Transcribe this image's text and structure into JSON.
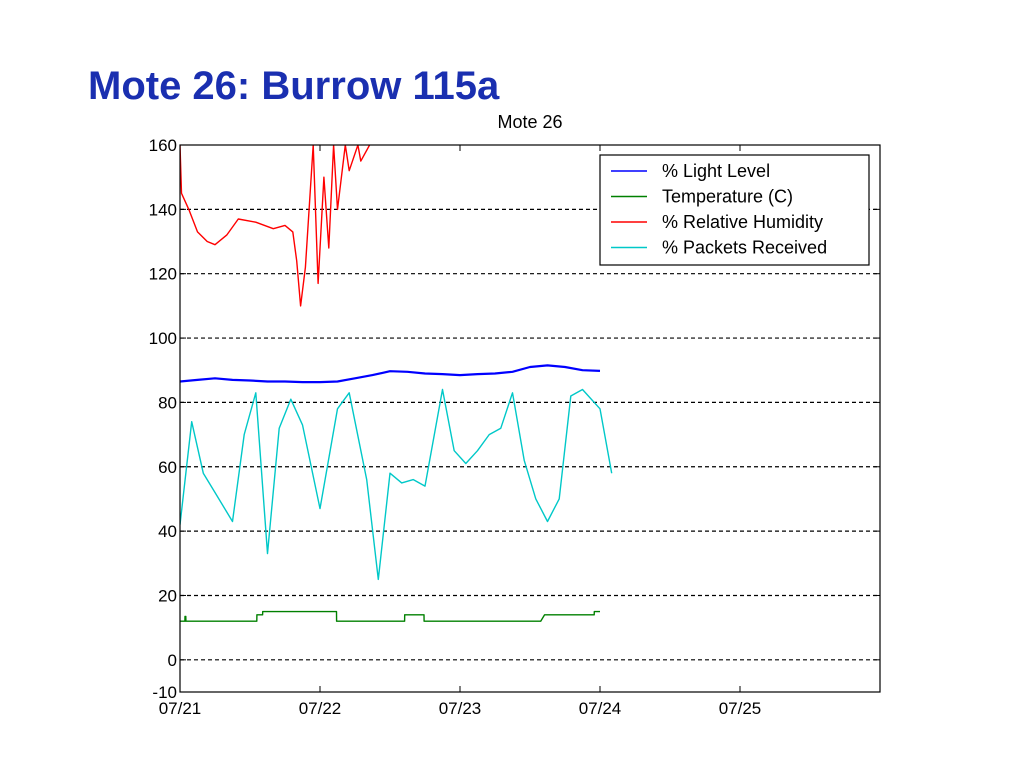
{
  "slide": {
    "title": "Mote 26: Burrow 115a"
  },
  "chart_data": {
    "type": "line",
    "title": "Mote 26",
    "xlabel": "",
    "ylabel": "",
    "x_ticks": [
      "07/21",
      "07/22",
      "07/23",
      "07/24",
      "07/25"
    ],
    "xlim": [
      "07/21 00:00",
      "07/26 00:00"
    ],
    "ylim": [
      -10,
      160
    ],
    "y_ticks": [
      -10,
      0,
      20,
      40,
      60,
      80,
      100,
      120,
      140,
      160
    ],
    "grid": "horizontal dashed",
    "legend_position": "top-right",
    "series": [
      {
        "name": "% Light Level",
        "color": "#0000ff",
        "points": [
          [
            "07/21 00:00",
            86.5
          ],
          [
            "07/21 03:00",
            87
          ],
          [
            "07/21 06:00",
            87.5
          ],
          [
            "07/21 09:00",
            87
          ],
          [
            "07/21 12:00",
            86.8
          ],
          [
            "07/21 15:00",
            86.5
          ],
          [
            "07/21 18:00",
            86.5
          ],
          [
            "07/21 21:00",
            86.3
          ],
          [
            "07/22 00:00",
            86.3
          ],
          [
            "07/22 03:00",
            86.5
          ],
          [
            "07/22 06:00",
            87.5
          ],
          [
            "07/22 09:00",
            88.5
          ],
          [
            "07/22 12:00",
            89.7
          ],
          [
            "07/22 15:00",
            89.5
          ],
          [
            "07/22 18:00",
            89
          ],
          [
            "07/22 21:00",
            88.8
          ],
          [
            "07/23 00:00",
            88.5
          ],
          [
            "07/23 03:00",
            88.8
          ],
          [
            "07/23 06:00",
            89
          ],
          [
            "07/23 09:00",
            89.5
          ],
          [
            "07/23 12:00",
            91
          ],
          [
            "07/23 15:00",
            91.5
          ],
          [
            "07/23 18:00",
            91
          ],
          [
            "07/23 21:00",
            90
          ],
          [
            "07/24 00:00",
            89.8
          ]
        ]
      },
      {
        "name": "Temperature (C)",
        "color": "#008000",
        "points": [
          [
            "07/21 00:00",
            12
          ],
          [
            "07/21 00:50",
            12
          ],
          [
            "07/21 00:51",
            13.5
          ],
          [
            "07/21 01:00",
            13.5
          ],
          [
            "07/21 01:01",
            12
          ],
          [
            "07/21 13:10",
            12
          ],
          [
            "07/21 13:11",
            14
          ],
          [
            "07/21 14:10",
            14
          ],
          [
            "07/21 14:11",
            15
          ],
          [
            "07/22 02:50",
            15
          ],
          [
            "07/22 02:51",
            12
          ],
          [
            "07/22 14:30",
            12
          ],
          [
            "07/22 14:31",
            14
          ],
          [
            "07/22 17:50",
            14
          ],
          [
            "07/22 17:51",
            12
          ],
          [
            "07/23 13:50",
            12
          ],
          [
            "07/23 14:30",
            14
          ],
          [
            "07/23 23:00",
            14
          ],
          [
            "07/23 23:01",
            15
          ],
          [
            "07/24 00:00",
            15
          ]
        ]
      },
      {
        "name": "% Relative Humidity",
        "color": "#ff0000",
        "points": [
          [
            "07/21 00:00",
            160
          ],
          [
            "07/21 00:15",
            145
          ],
          [
            "07/21 01:30",
            140
          ],
          [
            "07/21 03:00",
            133
          ],
          [
            "07/21 04:40",
            130
          ],
          [
            "07/21 06:00",
            129
          ],
          [
            "07/21 08:00",
            132
          ],
          [
            "07/21 10:00",
            137
          ],
          [
            "07/21 13:00",
            136
          ],
          [
            "07/21 16:00",
            134
          ],
          [
            "07/21 18:00",
            135
          ],
          [
            "07/21 19:20",
            133
          ],
          [
            "07/21 20:00",
            124
          ],
          [
            "07/21 20:40",
            110
          ],
          [
            "07/21 21:30",
            122
          ],
          [
            "07/21 22:50",
            160
          ],
          [
            "07/21 23:40",
            117
          ],
          [
            "07/22 00:40",
            150
          ],
          [
            "07/22 01:30",
            128
          ],
          [
            "07/22 02:20",
            160
          ],
          [
            "07/22 03:00",
            140
          ],
          [
            "07/22 04:20",
            160
          ],
          [
            "07/22 05:00",
            152
          ],
          [
            "07/22 06:30",
            160
          ],
          [
            "07/22 07:00",
            155
          ],
          [
            "07/22 08:30",
            160
          ]
        ]
      },
      {
        "name": "% Packets Received",
        "color": "#00c8c8",
        "points": [
          [
            "07/21 00:00",
            42
          ],
          [
            "07/21 02:00",
            74
          ],
          [
            "07/21 04:00",
            58
          ],
          [
            "07/21 06:00",
            52
          ],
          [
            "07/21 09:00",
            43
          ],
          [
            "07/21 11:00",
            70
          ],
          [
            "07/21 13:00",
            83
          ],
          [
            "07/21 15:00",
            33
          ],
          [
            "07/21 17:00",
            72
          ],
          [
            "07/21 19:00",
            81
          ],
          [
            "07/21 21:00",
            73
          ],
          [
            "07/22 00:00",
            47
          ],
          [
            "07/22 03:00",
            78
          ],
          [
            "07/22 05:00",
            83
          ],
          [
            "07/22 08:00",
            56
          ],
          [
            "07/22 10:00",
            25
          ],
          [
            "07/22 12:00",
            58
          ],
          [
            "07/22 14:00",
            55
          ],
          [
            "07/22 16:00",
            56
          ],
          [
            "07/22 18:00",
            54
          ],
          [
            "07/22 21:00",
            84
          ],
          [
            "07/22 23:00",
            65
          ],
          [
            "07/23 01:00",
            61
          ],
          [
            "07/23 03:00",
            65
          ],
          [
            "07/23 05:00",
            70
          ],
          [
            "07/23 07:00",
            72
          ],
          [
            "07/23 09:00",
            83
          ],
          [
            "07/23 11:00",
            62
          ],
          [
            "07/23 13:00",
            50
          ],
          [
            "07/23 15:00",
            43
          ],
          [
            "07/23 17:00",
            50
          ],
          [
            "07/23 19:00",
            82
          ],
          [
            "07/23 21:00",
            84
          ],
          [
            "07/24 00:00",
            78
          ],
          [
            "07/24 02:00",
            58
          ]
        ]
      }
    ]
  }
}
